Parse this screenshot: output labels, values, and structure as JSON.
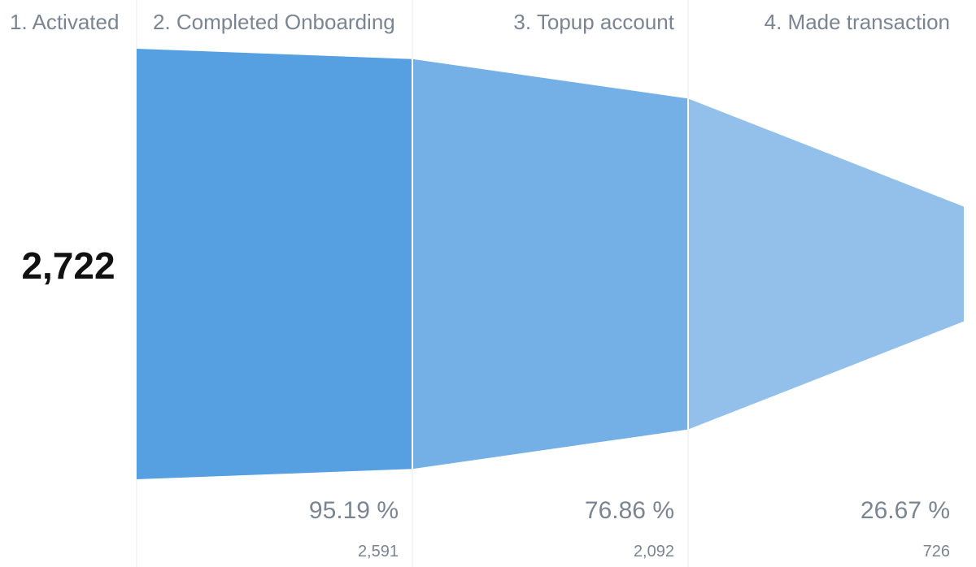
{
  "chart_data": {
    "type": "funnel",
    "steps": [
      {
        "label": "1. Activated",
        "value": 2722,
        "display_value": "2,722",
        "percent": null,
        "color": "#569fe0"
      },
      {
        "label": "2. Completed Onboarding",
        "value": 2591,
        "display_value": "2,591",
        "percent": "95.19 %",
        "color": "#569fe0"
      },
      {
        "label": "3. Topup account",
        "value": 2092,
        "display_value": "2,092",
        "percent": "76.86 %",
        "color": "#74b0e6"
      },
      {
        "label": "4. Made transaction",
        "value": 726,
        "display_value": "726",
        "percent": "26.67 %",
        "color": "#92c0eb"
      }
    ]
  },
  "colors": {
    "divider": "#e6e8eb",
    "label_text": "#7b8591",
    "headline_text": "#111111"
  }
}
